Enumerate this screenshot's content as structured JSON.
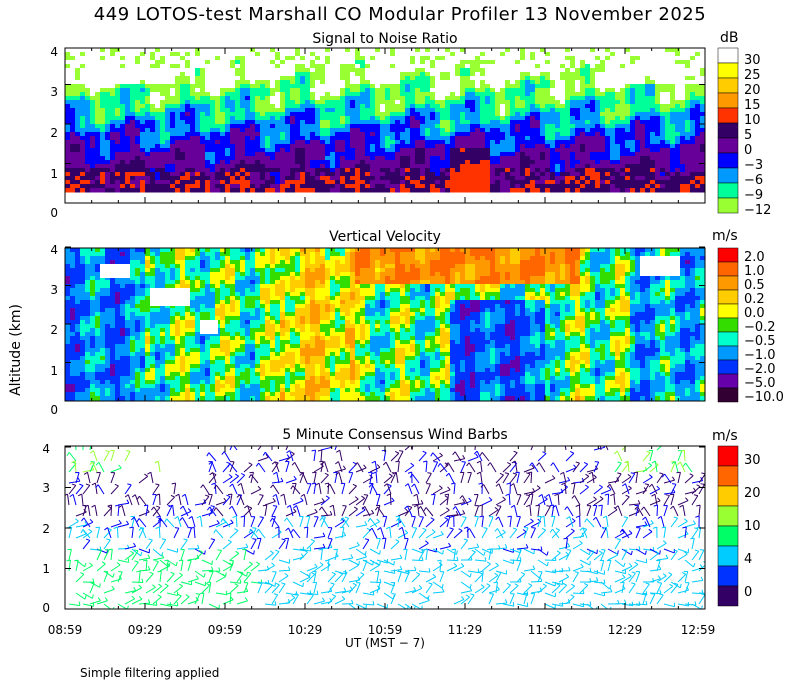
{
  "title": "449 LOTOS-test Marshall CO Modular Profiler 13 November 2025",
  "footer": "Simple filtering applied",
  "yaxis_label": "Altitude (km)",
  "xaxis_label": "UT  (MST − 7)",
  "x_ticks": [
    "08:59",
    "09:29",
    "09:59",
    "10:29",
    "10:59",
    "11:29",
    "11:59",
    "12:29",
    "12:59"
  ],
  "y_ticks": [
    "0",
    "1",
    "2",
    "3",
    "4"
  ],
  "chart_data": [
    {
      "type": "heatmap",
      "title": "Signal to Noise Ratio",
      "unit": "dB",
      "ylim": [
        0,
        4
      ],
      "xlabel": "UT  (MST − 7)",
      "ylabel": "Altitude (km)",
      "colorbar": {
        "labels": [
          "30",
          "25",
          "20",
          "15",
          "10",
          "5",
          "0",
          "−3",
          "−6",
          "−9",
          "−12"
        ],
        "colors": [
          "#ffffff",
          "#ffff00",
          "#ffcc00",
          "#ff9900",
          "#ff3300",
          "#330066",
          "#660099",
          "#0000ff",
          "#0099ff",
          "#00ff99",
          "#99ff33"
        ]
      }
    },
    {
      "type": "heatmap",
      "title": "Vertical Velocity",
      "unit": "m/s",
      "ylim": [
        0,
        4
      ],
      "xlabel": "UT  (MST − 7)",
      "ylabel": "Altitude (km)",
      "colorbar": {
        "labels": [
          "2.0",
          "1.0",
          "0.5",
          "0.2",
          "0.0",
          "−0.2",
          "−0.5",
          "−1.0",
          "−2.0",
          "−5.0",
          "−10.0"
        ],
        "colors": [
          "#ff0000",
          "#ff6600",
          "#ff9900",
          "#ffcc00",
          "#ffff00",
          "#33dd00",
          "#00ffcc",
          "#0099ff",
          "#0033ff",
          "#6600aa",
          "#330033"
        ]
      }
    },
    {
      "type": "scatter",
      "title": "5 Minute Consensus Wind Barbs",
      "unit": "m/s",
      "ylim": [
        0,
        4
      ],
      "xlabel": "UT  (MST − 7)",
      "ylabel": "Altitude (km)",
      "colorbar": {
        "labels": [
          "30",
          "20",
          "10",
          "4",
          "0"
        ],
        "colors": [
          "#ff0000",
          "#ff6600",
          "#ffcc00",
          "#99ff33",
          "#00ff66",
          "#00ccff",
          "#0033ff",
          "#330066"
        ]
      }
    }
  ]
}
